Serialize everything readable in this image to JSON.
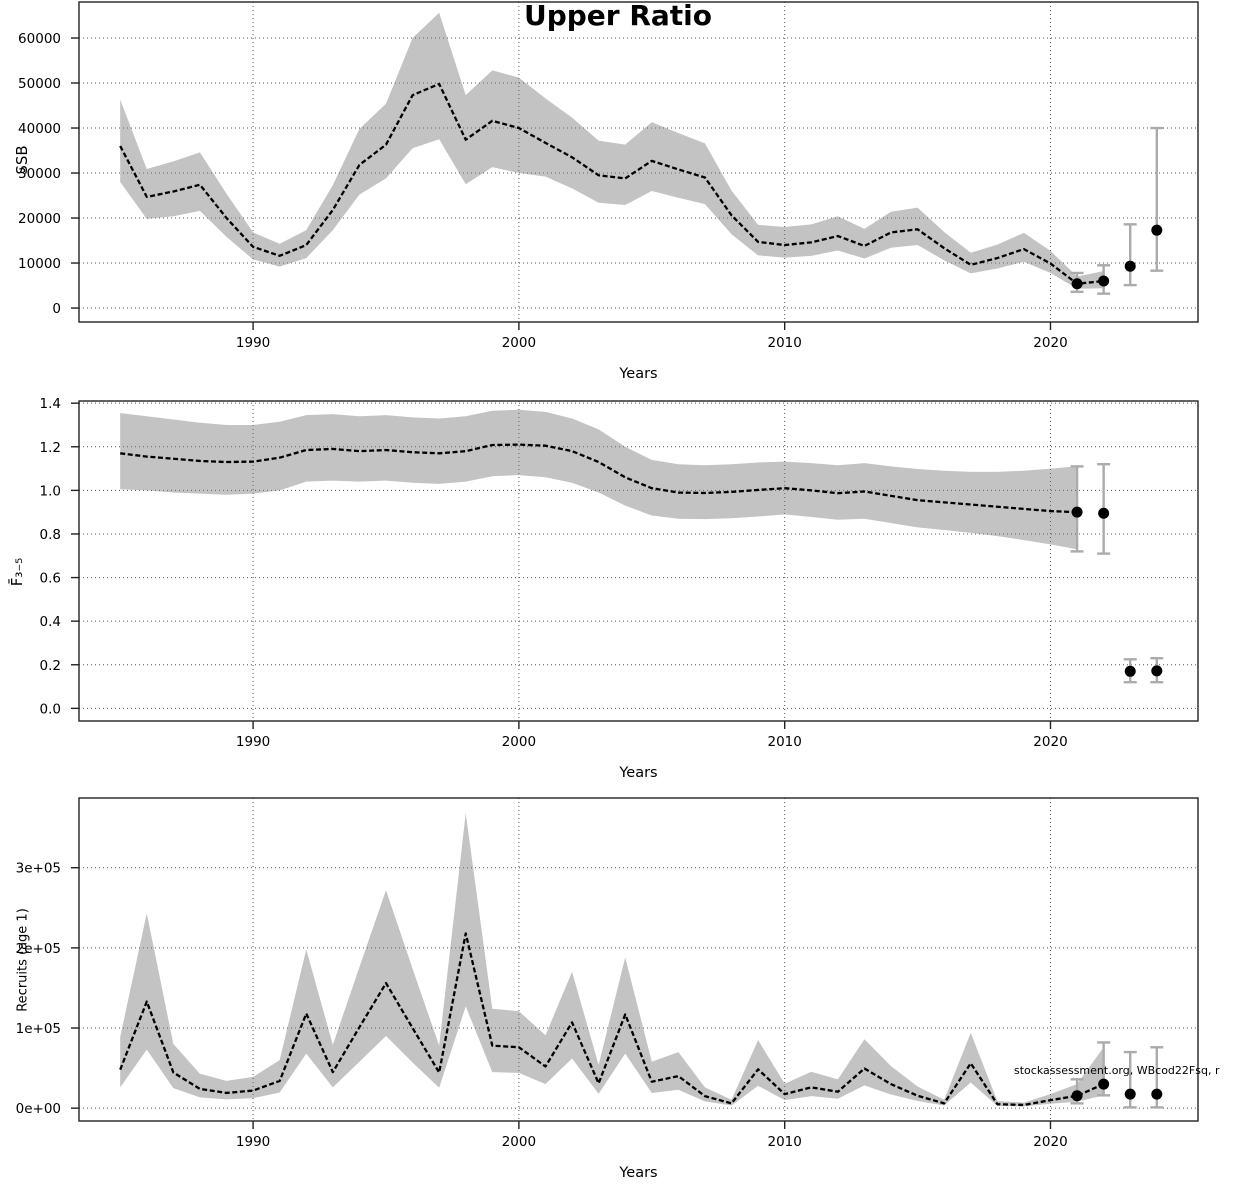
{
  "watermark": "stockassessment.org, WBcod22Fsq, r",
  "chart_data": [
    {
      "type": "line",
      "title": "Upper Ratio",
      "xlabel": "Years",
      "ylabel": "SSB",
      "legend": "none",
      "grid": "dotted",
      "x_ticks": [
        1990,
        2000,
        2010,
        2020
      ],
      "x_tick_labels": [
        "1990",
        "2000",
        "2010",
        "2020"
      ],
      "y_ticks": [
        0,
        10000,
        20000,
        30000,
        40000,
        50000,
        60000
      ],
      "y_tick_labels": [
        "0",
        "10000",
        "20000",
        "30000",
        "40000",
        "50000",
        "60000"
      ],
      "xlim": [
        1983.45,
        2025.55
      ],
      "ylim": [
        -3100,
        68000
      ],
      "geom": {
        "x0": 79,
        "x1": 1198,
        "y0": 2,
        "y1": 322
      },
      "years": [
        1985,
        1986,
        1987,
        1988,
        1989,
        1990,
        1991,
        1992,
        1993,
        1994,
        1995,
        1996,
        1997,
        1998,
        1999,
        2000,
        2001,
        2002,
        2003,
        2004,
        2005,
        2006,
        2007,
        2008,
        2009,
        2010,
        2011,
        2012,
        2013,
        2014,
        2015,
        2016,
        2017,
        2018,
        2019,
        2020,
        2021,
        2022
      ],
      "values": [
        36000,
        24700,
        25900,
        27400,
        20000,
        13600,
        11600,
        14000,
        21800,
        31800,
        36300,
        47300,
        49800,
        37400,
        41600,
        40000,
        36700,
        33500,
        29500,
        28800,
        32700,
        30800,
        29000,
        20600,
        14700,
        14000,
        14600,
        16000,
        13800,
        16800,
        17500,
        13300,
        9600,
        11100,
        13100,
        9900,
        5400,
        6000
      ],
      "band_lower": [
        28000,
        19800,
        20400,
        21600,
        15800,
        10800,
        9200,
        11100,
        17300,
        25200,
        28800,
        35500,
        37500,
        27500,
        31300,
        30000,
        29200,
        26600,
        23400,
        22900,
        26000,
        24500,
        23100,
        16400,
        11700,
        11200,
        11600,
        12800,
        11000,
        13400,
        14000,
        10600,
        7700,
        8800,
        10300,
        7800,
        4300,
        4400
      ],
      "band_upper": [
        46300,
        30900,
        32600,
        34600,
        25400,
        16800,
        14300,
        17300,
        27300,
        39800,
        45400,
        60000,
        65600,
        47300,
        52800,
        51200,
        46600,
        42300,
        37200,
        36300,
        41300,
        38900,
        36600,
        26100,
        18500,
        18000,
        18600,
        20400,
        17600,
        21400,
        22300,
        16900,
        12300,
        14100,
        16700,
        12700,
        7000,
        8200
      ],
      "points": [
        {
          "year": 2021,
          "value": 5400,
          "ci": [
            3600,
            7800
          ]
        },
        {
          "year": 2022,
          "value": 6000,
          "ci": [
            3200,
            9500
          ]
        },
        {
          "year": 2023,
          "value": 9300,
          "ci": [
            5100,
            18600
          ]
        },
        {
          "year": 2024,
          "value": 17300,
          "ci": [
            8300,
            40000
          ]
        }
      ]
    },
    {
      "type": "line",
      "title": "",
      "xlabel": "Years",
      "ylabel": "F̄₃₋₅",
      "legend": "none",
      "grid": "dotted",
      "x_ticks": [
        1990,
        2000,
        2010,
        2020
      ],
      "x_tick_labels": [
        "1990",
        "2000",
        "2010",
        "2020"
      ],
      "y_ticks": [
        0.0,
        0.2,
        0.4,
        0.6,
        0.8,
        1.0,
        1.2,
        1.4
      ],
      "y_tick_labels": [
        "0.0",
        "0.2",
        "0.4",
        "0.6",
        "0.8",
        "1.0",
        "1.2",
        "1.4"
      ],
      "xlim": [
        1983.45,
        2025.55
      ],
      "ylim": [
        -0.058,
        1.41
      ],
      "geom": {
        "x0": 79,
        "x1": 1198,
        "y0": 401,
        "y1": 721
      },
      "years": [
        1985,
        1986,
        1987,
        1988,
        1989,
        1990,
        1991,
        1992,
        1993,
        1994,
        1995,
        1996,
        1997,
        1998,
        1999,
        2000,
        2001,
        2002,
        2003,
        2004,
        2005,
        2006,
        2007,
        2008,
        2009,
        2010,
        2011,
        2012,
        2013,
        2014,
        2015,
        2016,
        2017,
        2018,
        2019,
        2020,
        2021
      ],
      "values": [
        1.17,
        1.155,
        1.145,
        1.135,
        1.13,
        1.132,
        1.15,
        1.185,
        1.19,
        1.18,
        1.185,
        1.175,
        1.17,
        1.18,
        1.208,
        1.21,
        1.205,
        1.18,
        1.13,
        1.06,
        1.01,
        0.99,
        0.988,
        0.993,
        1.002,
        1.01,
        1.0,
        0.987,
        0.995,
        0.975,
        0.955,
        0.945,
        0.935,
        0.925,
        0.915,
        0.905,
        0.9
      ],
      "band_lower": [
        1.005,
        1.0,
        0.99,
        0.985,
        0.98,
        0.985,
        1.0,
        1.04,
        1.045,
        1.04,
        1.045,
        1.035,
        1.03,
        1.04,
        1.065,
        1.07,
        1.06,
        1.035,
        0.99,
        0.93,
        0.885,
        0.87,
        0.868,
        0.872,
        0.88,
        0.89,
        0.878,
        0.865,
        0.87,
        0.85,
        0.83,
        0.818,
        0.805,
        0.79,
        0.772,
        0.752,
        0.73
      ],
      "band_upper": [
        1.355,
        1.34,
        1.325,
        1.31,
        1.3,
        1.3,
        1.315,
        1.345,
        1.35,
        1.34,
        1.345,
        1.335,
        1.33,
        1.34,
        1.365,
        1.37,
        1.36,
        1.33,
        1.28,
        1.2,
        1.14,
        1.12,
        1.115,
        1.12,
        1.128,
        1.132,
        1.125,
        1.115,
        1.125,
        1.11,
        1.098,
        1.09,
        1.085,
        1.085,
        1.09,
        1.1,
        1.11
      ],
      "points": [
        {
          "year": 2021,
          "value": 0.9,
          "ci": [
            0.72,
            1.11
          ]
        },
        {
          "year": 2022,
          "value": 0.895,
          "ci": [
            0.71,
            1.12
          ]
        },
        {
          "year": 2023,
          "value": 0.17,
          "ci": [
            0.12,
            0.225
          ]
        },
        {
          "year": 2024,
          "value": 0.172,
          "ci": [
            0.12,
            0.23
          ]
        }
      ]
    },
    {
      "type": "line",
      "title": "",
      "xlabel": "Years",
      "ylabel": "Recruits (age 1)",
      "legend": "none",
      "grid": "dotted",
      "x_ticks": [
        1990,
        2000,
        2010,
        2020
      ],
      "x_tick_labels": [
        "1990",
        "2000",
        "2010",
        "2020"
      ],
      "y_ticks": [
        0,
        100000,
        200000,
        300000
      ],
      "y_tick_labels": [
        "0e+00",
        "1e+05",
        "2e+05",
        "3e+05"
      ],
      "xlim": [
        1983.45,
        2025.55
      ],
      "ylim": [
        -16000,
        387000
      ],
      "geom": {
        "x0": 79,
        "x1": 1198,
        "y0": 798,
        "y1": 1121
      },
      "years": [
        1985,
        1986,
        1987,
        1988,
        1989,
        1990,
        1991,
        1992,
        1993,
        1994,
        1995,
        1996,
        1997,
        1998,
        1999,
        2000,
        2001,
        2002,
        2003,
        2004,
        2005,
        2006,
        2007,
        2008,
        2009,
        2010,
        2011,
        2012,
        2013,
        2014,
        2015,
        2016,
        2017,
        2018,
        2019,
        2020,
        2021,
        2022
      ],
      "values": [
        48000,
        133000,
        44500,
        24000,
        19000,
        22000,
        34000,
        118000,
        45000,
        101000,
        156000,
        100000,
        44500,
        218000,
        78000,
        76000,
        52000,
        107000,
        31000,
        117000,
        33000,
        40000,
        15000,
        6000,
        48500,
        17500,
        26000,
        20500,
        49500,
        30000,
        15500,
        6000,
        56000,
        5000,
        4000,
        10000,
        15500,
        30000
      ],
      "band_lower": [
        26000,
        73000,
        25000,
        13500,
        11000,
        12500,
        19500,
        68000,
        26000,
        58000,
        90000,
        57000,
        25500,
        127000,
        45000,
        44000,
        30000,
        62000,
        18000,
        68000,
        19000,
        23000,
        8500,
        3400,
        28000,
        10000,
        15000,
        11800,
        28500,
        17000,
        8900,
        3400,
        32000,
        2800,
        2200,
        5500,
        8000,
        16000
      ],
      "band_upper": [
        89000,
        243000,
        80000,
        43000,
        34000,
        39000,
        60000,
        198000,
        79000,
        176000,
        272000,
        174000,
        78000,
        368000,
        124000,
        121000,
        91000,
        170000,
        54000,
        188000,
        58000,
        70000,
        26000,
        10500,
        85000,
        30500,
        45500,
        36000,
        86000,
        52500,
        27000,
        10500,
        94000,
        8800,
        7000,
        17500,
        30000,
        76000
      ],
      "points": [
        {
          "year": 2021,
          "value": 15500,
          "ci": [
            6000,
            36000
          ]
        },
        {
          "year": 2022,
          "value": 30000,
          "ci": [
            16000,
            82000
          ]
        },
        {
          "year": 2023,
          "value": 17500,
          "ci": [
            1000,
            70000
          ]
        },
        {
          "year": 2024,
          "value": 17500,
          "ci": [
            1000,
            76000
          ]
        }
      ]
    }
  ]
}
